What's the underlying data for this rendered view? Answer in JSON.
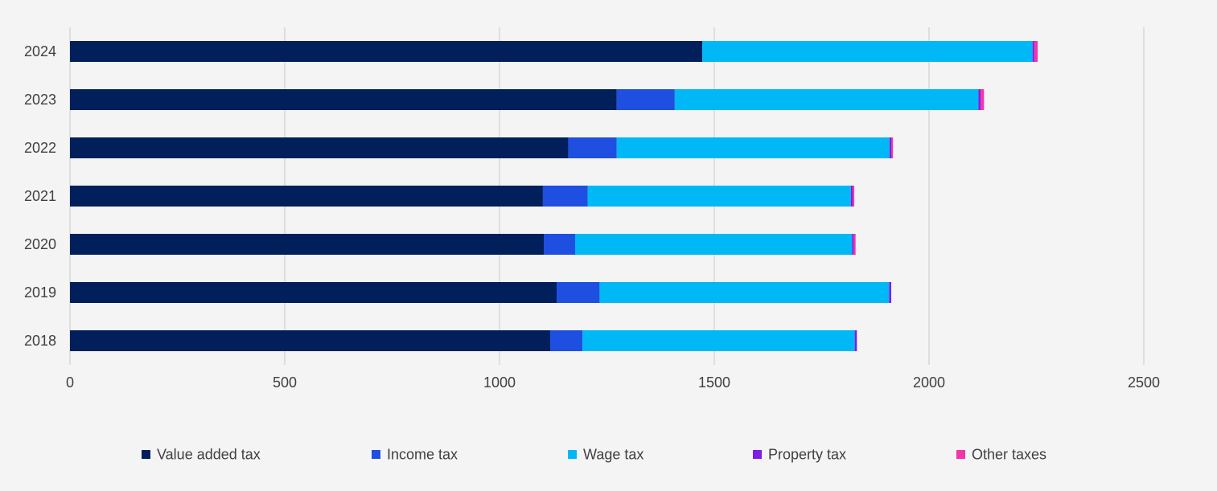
{
  "chart_data": {
    "type": "bar",
    "orientation": "horizontal",
    "stacked": true,
    "categories": [
      "2024",
      "2023",
      "2022",
      "2021",
      "2020",
      "2019",
      "2018"
    ],
    "series": [
      {
        "name": "Value added tax",
        "color": "#001f5b",
        "values": [
          1472,
          1273,
          1160,
          1101,
          1103,
          1133,
          1118
        ]
      },
      {
        "name": "Income tax",
        "color": "#1f4fe0",
        "values": [
          0,
          135,
          113,
          104,
          73,
          100,
          75
        ]
      },
      {
        "name": "Wage tax",
        "color": "#00b8f5",
        "values": [
          769,
          707,
          635,
          613,
          645,
          674,
          634
        ]
      },
      {
        "name": "Property tax",
        "color": "#7c1ee6",
        "values": [
          4,
          5,
          4,
          4,
          3,
          5,
          5
        ]
      },
      {
        "name": "Other taxes",
        "color": "#f236a8",
        "values": [
          8,
          8,
          4,
          4,
          5,
          0,
          0
        ]
      }
    ],
    "xlim": [
      0,
      2500
    ],
    "x_ticks": [
      "0",
      "500",
      "1000",
      "1500",
      "2000",
      "2500"
    ],
    "grid": "vertical",
    "legend": "bottom",
    "title": "",
    "xlabel": "",
    "ylabel": ""
  }
}
